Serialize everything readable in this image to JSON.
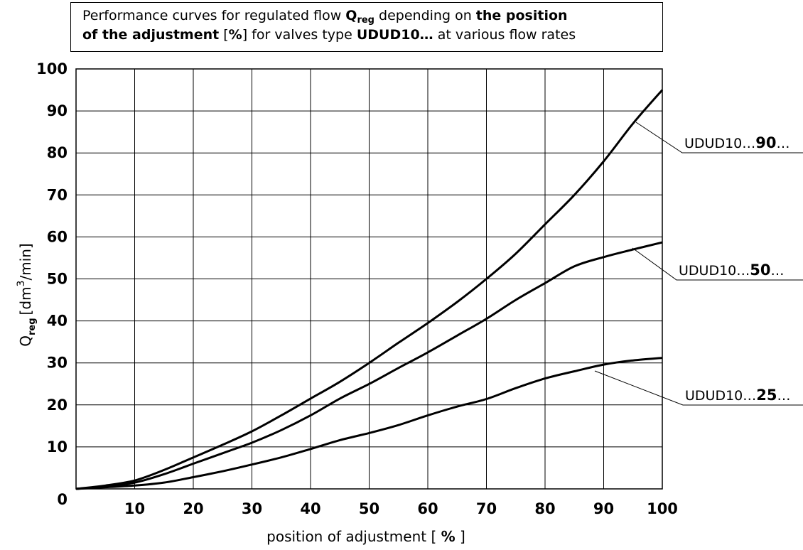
{
  "title": {
    "p1": "Performance curves for regulated flow ",
    "q": "Q",
    "qsub": "reg",
    "p2": " depending on ",
    "b1": "the position",
    "b2": "of the adjustment",
    "p3": " [",
    "b3": "%",
    "p4": "] for valves type ",
    "b4": "UDUD10…",
    "p5": "  at various flow rates"
  },
  "chart_data": {
    "type": "line",
    "xlabel_prefix": "position of adjustment [ ",
    "xlabel_unit": "%",
    "xlabel_suffix": " ]",
    "ylabel_q": "Q",
    "ylabel_sub": "reg",
    "ylabel_unit_a": "[dm",
    "ylabel_unit_sup": "3",
    "ylabel_unit_b": "/min]",
    "xlim": [
      0,
      100
    ],
    "ylim": [
      0,
      100
    ],
    "x_ticks": [
      10,
      20,
      30,
      40,
      50,
      60,
      70,
      80,
      90,
      100
    ],
    "y_ticks": [
      0,
      10,
      20,
      30,
      40,
      50,
      60,
      70,
      80,
      90,
      100
    ],
    "grid": true,
    "series": [
      {
        "name": "UDUD10…90…",
        "label_prefix": "UDUD10…",
        "label_bold": "90",
        "label_suffix": "…",
        "x": [
          0,
          5,
          10,
          15,
          20,
          25,
          30,
          35,
          40,
          45,
          50,
          55,
          60,
          65,
          70,
          75,
          80,
          85,
          90,
          95,
          100
        ],
        "y": [
          0,
          0.8,
          2,
          4.5,
          7.5,
          10.5,
          13.7,
          17.5,
          21.5,
          25.5,
          30,
          34.8,
          39.5,
          44.5,
          50,
          56,
          63,
          70,
          78,
          87,
          95
        ]
      },
      {
        "name": "UDUD10…50…",
        "label_prefix": "UDUD10…",
        "label_bold": "50",
        "label_suffix": "…",
        "x": [
          0,
          5,
          10,
          15,
          20,
          25,
          30,
          35,
          40,
          45,
          50,
          55,
          60,
          65,
          70,
          75,
          80,
          85,
          90,
          95,
          100
        ],
        "y": [
          0,
          0.6,
          1.5,
          3.5,
          6,
          8.5,
          11,
          14,
          17.5,
          21.5,
          25,
          28.8,
          32.5,
          36.5,
          40.5,
          45,
          49,
          53,
          55.2,
          57,
          58.7
        ]
      },
      {
        "name": "UDUD10…25…",
        "label_prefix": "UDUD10…",
        "label_bold": "25",
        "label_suffix": "…",
        "x": [
          0,
          5,
          10,
          15,
          20,
          25,
          30,
          35,
          40,
          45,
          50,
          55,
          60,
          65,
          70,
          75,
          80,
          85,
          90,
          95,
          100
        ],
        "y": [
          0,
          0.4,
          0.8,
          1.5,
          2.8,
          4.2,
          5.8,
          7.5,
          9.5,
          11.6,
          13.3,
          15.2,
          17.5,
          19.6,
          21.4,
          24,
          26.3,
          28,
          29.6,
          30.6,
          31.2
        ]
      }
    ]
  }
}
